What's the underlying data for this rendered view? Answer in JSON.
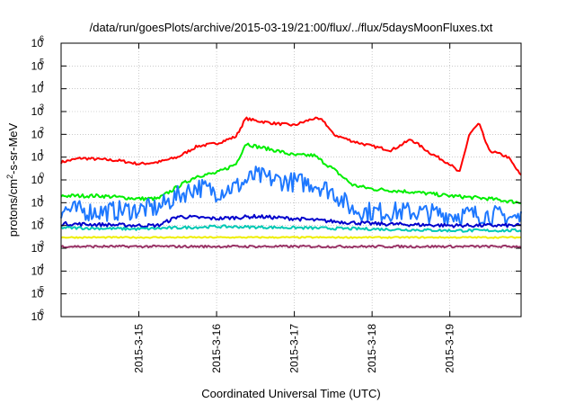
{
  "chart_data": {
    "type": "line",
    "title": "/data/run/goesPlots/archive/2015-03-19/21:00/flux/../flux/5daysMoonFluxes.txt",
    "xlabel": "Coordinated Universal Time (UTC)",
    "ylabel": {
      "pre": "protons/cm",
      "sup": "2",
      "post": "-s-sr-MeV"
    },
    "scale": {
      "x": "time (days)",
      "y": "log10"
    },
    "xlim": [
      "2015-03-14T00:00",
      "2015-03-19T22:00"
    ],
    "ylim": [
      1e-06,
      1000000.0
    ],
    "grid": true,
    "legend": "none",
    "x_ticks": [
      "2015-3-15",
      "2015-3-16",
      "2015-3-17",
      "2015-3-18",
      "2015-3-19"
    ],
    "y_ticks": [
      {
        "base": "10",
        "exp": "-6"
      },
      {
        "base": "10",
        "exp": "-5"
      },
      {
        "base": "10",
        "exp": "-4"
      },
      {
        "base": "10",
        "exp": "-3"
      },
      {
        "base": "10",
        "exp": "-2"
      },
      {
        "base": "10",
        "exp": "-1"
      },
      {
        "base": "10",
        "exp": "0"
      },
      {
        "base": "10",
        "exp": "1"
      },
      {
        "base": "10",
        "exp": "2"
      },
      {
        "base": "10",
        "exp": "3"
      },
      {
        "base": "10",
        "exp": "4"
      },
      {
        "base": "10",
        "exp": "5"
      },
      {
        "base": "10",
        "exp": "6"
      }
    ],
    "series": [
      {
        "color": "#ff0000",
        "noise": 0.06,
        "points": [
          [
            "2015-03-14T00:00",
            6
          ],
          [
            "2015-03-14T06:00",
            9
          ],
          [
            "2015-03-14T12:00",
            8
          ],
          [
            "2015-03-14T18:00",
            7
          ],
          [
            "2015-03-15T00:00",
            5
          ],
          [
            "2015-03-15T06:00",
            6
          ],
          [
            "2015-03-15T12:00",
            10
          ],
          [
            "2015-03-15T18:00",
            30
          ],
          [
            "2015-03-16T00:00",
            40
          ],
          [
            "2015-03-16T06:00",
            80
          ],
          [
            "2015-03-16T09:00",
            500
          ],
          [
            "2015-03-16T12:00",
            400
          ],
          [
            "2015-03-16T18:00",
            300
          ],
          [
            "2015-03-17T00:00",
            250
          ],
          [
            "2015-03-17T06:00",
            500
          ],
          [
            "2015-03-17T09:00",
            400
          ],
          [
            "2015-03-17T12:00",
            100
          ],
          [
            "2015-03-17T18:00",
            50
          ],
          [
            "2015-03-18T00:00",
            30
          ],
          [
            "2015-03-18T06:00",
            20
          ],
          [
            "2015-03-18T12:00",
            60
          ],
          [
            "2015-03-18T18:00",
            15
          ],
          [
            "2015-03-19T00:00",
            5
          ],
          [
            "2015-03-19T03:00",
            2
          ],
          [
            "2015-03-19T06:00",
            100
          ],
          [
            "2015-03-19T09:00",
            300
          ],
          [
            "2015-03-19T12:00",
            20
          ],
          [
            "2015-03-19T18:00",
            10
          ],
          [
            "2015-03-19T22:00",
            1.5
          ]
        ]
      },
      {
        "color": "#00ee00",
        "noise": 0.08,
        "points": [
          [
            "2015-03-14T00:00",
            0.2
          ],
          [
            "2015-03-14T12:00",
            0.2
          ],
          [
            "2015-03-15T00:00",
            0.15
          ],
          [
            "2015-03-15T06:00",
            0.15
          ],
          [
            "2015-03-15T12:00",
            0.5
          ],
          [
            "2015-03-15T18:00",
            1.5
          ],
          [
            "2015-03-16T00:00",
            2
          ],
          [
            "2015-03-16T06:00",
            5
          ],
          [
            "2015-03-16T09:00",
            40
          ],
          [
            "2015-03-16T12:00",
            30
          ],
          [
            "2015-03-16T18:00",
            20
          ],
          [
            "2015-03-17T00:00",
            12
          ],
          [
            "2015-03-17T06:00",
            12
          ],
          [
            "2015-03-17T12:00",
            3
          ],
          [
            "2015-03-17T18:00",
            0.6
          ],
          [
            "2015-03-18T00:00",
            0.4
          ],
          [
            "2015-03-18T12:00",
            0.3
          ],
          [
            "2015-03-19T00:00",
            0.2
          ],
          [
            "2015-03-19T12:00",
            0.15
          ],
          [
            "2015-03-19T22:00",
            0.1
          ]
        ]
      },
      {
        "color": "#1e78ff",
        "noise": 0.22,
        "points": [
          [
            "2015-03-14T00:00",
            0.05
          ],
          [
            "2015-03-14T12:00",
            0.04
          ],
          [
            "2015-03-15T00:00",
            0.05
          ],
          [
            "2015-03-15T06:00",
            0.06
          ],
          [
            "2015-03-15T12:00",
            0.2
          ],
          [
            "2015-03-15T18:00",
            0.5
          ],
          [
            "2015-03-16T00:00",
            0.3
          ],
          [
            "2015-03-16T06:00",
            0.5
          ],
          [
            "2015-03-16T12:00",
            1.5
          ],
          [
            "2015-03-16T18:00",
            1
          ],
          [
            "2015-03-17T00:00",
            0.8
          ],
          [
            "2015-03-17T06:00",
            0.7
          ],
          [
            "2015-03-17T12:00",
            0.3
          ],
          [
            "2015-03-17T18:00",
            0.05
          ],
          [
            "2015-03-18T00:00",
            0.04
          ],
          [
            "2015-03-18T12:00",
            0.04
          ],
          [
            "2015-03-19T00:00",
            0.03
          ],
          [
            "2015-03-19T12:00",
            0.03
          ],
          [
            "2015-03-19T22:00",
            0.02
          ]
        ]
      },
      {
        "color": "#0000cc",
        "noise": 0.08,
        "points": [
          [
            "2015-03-14T00:00",
            0.012
          ],
          [
            "2015-03-15T00:00",
            0.01
          ],
          [
            "2015-03-15T06:00",
            0.01
          ],
          [
            "2015-03-15T12:00",
            0.025
          ],
          [
            "2015-03-16T00:00",
            0.02
          ],
          [
            "2015-03-16T12:00",
            0.025
          ],
          [
            "2015-03-17T00:00",
            0.02
          ],
          [
            "2015-03-17T12:00",
            0.015
          ],
          [
            "2015-03-18T00:00",
            0.012
          ],
          [
            "2015-03-19T00:00",
            0.01
          ],
          [
            "2015-03-19T22:00",
            0.01
          ]
        ]
      },
      {
        "color": "#00c8b4",
        "noise": 0.06,
        "points": [
          [
            "2015-03-14T00:00",
            0.008
          ],
          [
            "2015-03-15T00:00",
            0.007
          ],
          [
            "2015-03-16T00:00",
            0.009
          ],
          [
            "2015-03-17T00:00",
            0.008
          ],
          [
            "2015-03-18T00:00",
            0.007
          ],
          [
            "2015-03-19T00:00",
            0.006
          ],
          [
            "2015-03-19T22:00",
            0.006
          ]
        ]
      },
      {
        "color": "#eeee00",
        "noise": 0.03,
        "points": [
          [
            "2015-03-14T00:00",
            0.003
          ],
          [
            "2015-03-17T00:00",
            0.003
          ],
          [
            "2015-03-19T22:00",
            0.003
          ]
        ]
      },
      {
        "color": "#993366",
        "noise": 0.05,
        "points": [
          [
            "2015-03-14T00:00",
            0.0012
          ],
          [
            "2015-03-17T00:00",
            0.0012
          ],
          [
            "2015-03-19T22:00",
            0.0012
          ]
        ]
      }
    ]
  }
}
